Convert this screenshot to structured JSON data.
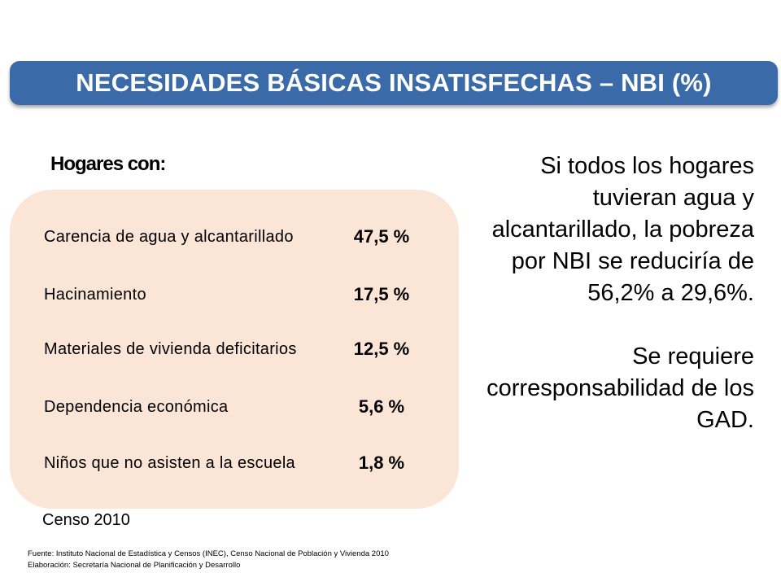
{
  "title": "NECESIDADES BÁSICAS INSATISFECHAS – NBI (%)",
  "subheading": "Hogares con:",
  "rows": [
    {
      "label": "Carencia de agua y alcantarillado",
      "value": "47,5 %"
    },
    {
      "label": "Hacinamiento",
      "value": "17,5 %"
    },
    {
      "label": "Materiales de vivienda deficitarios",
      "value": "12,5 %"
    },
    {
      "label": "Dependencia económica",
      "value": "5,6 %"
    },
    {
      "label": "Niños que no asisten a la escuela",
      "value": "1,8 %"
    }
  ],
  "census": "Censo 2010",
  "source_line1": "Fuente: Instituto Nacional de Estadística y Censos (INEC), Censo Nacional de Población y Vivienda 2010",
  "source_line2": "Elaboración: Secretaría Nacional de Planificación y Desarrollo",
  "statement1": "Si todos los hogares tuvieran agua y alcantarillado, la pobreza por NBI se reduciría de 56,2% a 29,6%.",
  "statement2": "Se requiere corresponsabilidad de los GAD.",
  "colors": {
    "title_bg": "#3a6aa7",
    "panel_bg": "#fbe5d6"
  }
}
